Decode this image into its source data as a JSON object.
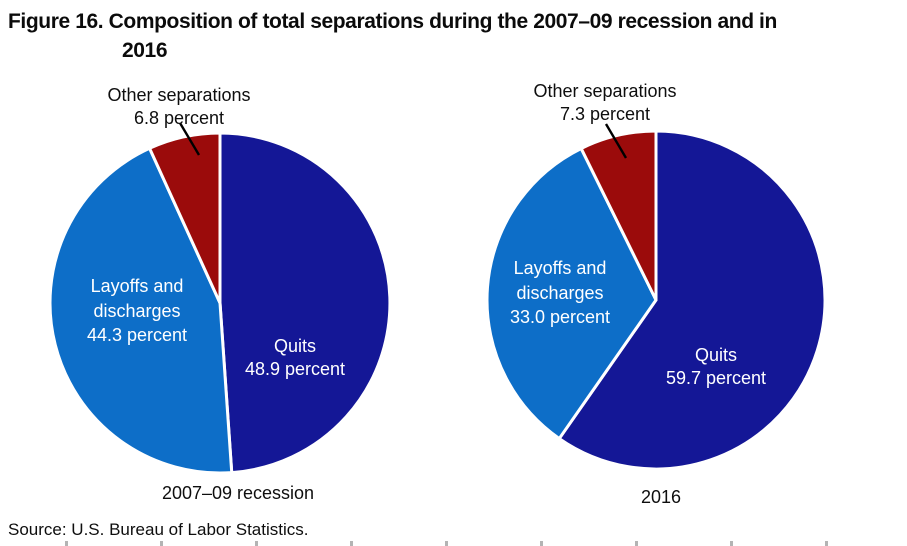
{
  "figure": {
    "title": "Figure 16. Composition of total separations during the 2007–09 recession and in 2016",
    "title_lines": [
      "Figure 16. Composition of total separations during the 2007–09 recession and in",
      "2016"
    ],
    "source": "Source: U.S. Bureau of Labor Statistics."
  },
  "colors": {
    "quits": "#141796",
    "layoffs_and_discharges": "#0d6ec8",
    "other_separations": "#9b0b0b",
    "slice_border": "#ffffff",
    "callout_line": "#000000"
  },
  "chart_data": [
    {
      "type": "pie",
      "caption": "2007–09 recession",
      "unit": "percent",
      "start_angle": "top",
      "direction": "clockwise",
      "slices": [
        {
          "label": "Quits",
          "value": 48.9,
          "value_text": "48.9 percent",
          "color": "#141796"
        },
        {
          "label": "Layoffs and discharges",
          "value": 44.3,
          "value_text": "44.3 percent",
          "color": "#0d6ec8"
        },
        {
          "label": "Other separations",
          "value": 6.8,
          "value_text": "6.8 percent",
          "color": "#9b0b0b"
        }
      ]
    },
    {
      "type": "pie",
      "caption": "2016",
      "unit": "percent",
      "start_angle": "top",
      "direction": "clockwise",
      "slices": [
        {
          "label": "Quits",
          "value": 59.7,
          "value_text": "59.7 percent",
          "color": "#141796"
        },
        {
          "label": "Layoffs and discharges",
          "value": 33.0,
          "value_text": "33.0 percent",
          "color": "#0d6ec8"
        },
        {
          "label": "Other separations",
          "value": 7.3,
          "value_text": "7.3 percent",
          "color": "#9b0b0b"
        }
      ]
    }
  ]
}
